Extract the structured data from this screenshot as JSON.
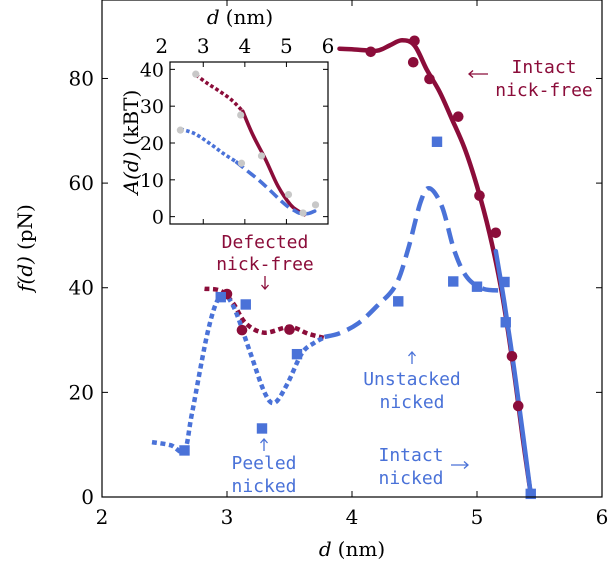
{
  "colors": {
    "crimson": "#8b0d3a",
    "blue": "#4a72d8",
    "gray": "#c8c8c8",
    "axis": "#000000"
  },
  "chart_data": [
    {
      "type": "line",
      "xlabel": "d (nm)",
      "ylabel": "f(d) (pN)",
      "xlim": [
        2,
        6
      ],
      "ylim": [
        0,
        95
      ],
      "xticks": [
        2,
        3,
        4,
        5,
        6
      ],
      "yticks": [
        0,
        20,
        40,
        60,
        80
      ],
      "grid": false,
      "series": [
        {
          "name": "Intact nick-free",
          "color": "crimson",
          "line_style": "solid",
          "line": [
            [
              3.9,
              85.7
            ],
            [
              4.05,
              85.5
            ],
            [
              4.2,
              85.3
            ],
            [
              4.3,
              86.3
            ],
            [
              4.4,
              87.3
            ],
            [
              4.5,
              86.3
            ],
            [
              4.6,
              81.6
            ],
            [
              4.7,
              77.5
            ],
            [
              4.8,
              72.2
            ],
            [
              4.9,
              66.7
            ],
            [
              5.0,
              59.4
            ],
            [
              5.1,
              50.4
            ],
            [
              5.2,
              38.9
            ],
            [
              5.3,
              23.2
            ],
            [
              5.37,
              10.5
            ],
            [
              5.43,
              0.5
            ]
          ],
          "markers": "circle",
          "points": [
            [
              4.15,
              85.1
            ],
            [
              4.5,
              87.2
            ],
            [
              4.49,
              83.1
            ],
            [
              4.62,
              79.9
            ],
            [
              4.85,
              72.7
            ],
            [
              5.02,
              57.6
            ],
            [
              5.15,
              50.5
            ],
            [
              5.28,
              26.9
            ],
            [
              5.33,
              17.4
            ]
          ]
        },
        {
          "name": "Defected nick-free",
          "color": "crimson",
          "line_style": "dotted",
          "line": [
            [
              2.82,
              39.8
            ],
            [
              2.95,
              39.4
            ],
            [
              3.05,
              37.0
            ],
            [
              3.15,
              33.2
            ],
            [
              3.3,
              31.4
            ],
            [
              3.5,
              32.5
            ],
            [
              3.65,
              31.2
            ],
            [
              3.78,
              30.4
            ]
          ],
          "markers": "circle",
          "points": [
            [
              3.0,
              38.8
            ],
            [
              3.12,
              31.9
            ],
            [
              3.5,
              32.0
            ]
          ]
        },
        {
          "name": "Peeled nicked",
          "color": "blue",
          "line_style": "dotted",
          "line": [
            [
              2.4,
              10.5
            ],
            [
              2.55,
              9.9
            ],
            [
              2.66,
              8.9
            ],
            [
              2.72,
              16.0
            ],
            [
              2.85,
              32.0
            ],
            [
              2.95,
              38.5
            ],
            [
              3.05,
              36.5
            ],
            [
              3.18,
              28.0
            ],
            [
              3.3,
              20.0
            ],
            [
              3.38,
              18.0
            ],
            [
              3.48,
              21.5
            ],
            [
              3.6,
              27.5
            ],
            [
              3.7,
              29.5
            ],
            [
              3.78,
              30.5
            ]
          ],
          "markers": "square",
          "points": [
            [
              2.66,
              8.9
            ],
            [
              2.95,
              38.2
            ],
            [
              3.15,
              36.8
            ],
            [
              3.28,
              13.1
            ],
            [
              3.56,
              27.3
            ]
          ]
        },
        {
          "name": "Unstacked nicked",
          "color": "blue",
          "line_style": "dashed",
          "line": [
            [
              3.78,
              30.6
            ],
            [
              3.9,
              31.3
            ],
            [
              4.05,
              33.2
            ],
            [
              4.2,
              36.5
            ],
            [
              4.35,
              40.5
            ],
            [
              4.45,
              47.5
            ],
            [
              4.55,
              56.5
            ],
            [
              4.62,
              59.0
            ],
            [
              4.72,
              55.5
            ],
            [
              4.82,
              47.0
            ],
            [
              4.92,
              42.0
            ],
            [
              5.05,
              39.8
            ],
            [
              5.2,
              39.5
            ]
          ],
          "markers": "square",
          "points": [
            [
              4.37,
              37.4
            ],
            [
              4.68,
              67.9
            ],
            [
              4.81,
              41.2
            ],
            [
              5.0,
              40.2
            ]
          ]
        },
        {
          "name": "Intact nicked",
          "color": "blue",
          "line_style": "solid",
          "line": [
            [
              5.15,
              47.0
            ],
            [
              5.22,
              37.0
            ],
            [
              5.3,
              24.0
            ],
            [
              5.37,
              11.5
            ],
            [
              5.43,
              0.5
            ]
          ],
          "markers": "square",
          "points": [
            [
              5.22,
              41.1
            ],
            [
              5.23,
              33.4
            ],
            [
              5.43,
              0.6
            ]
          ]
        }
      ],
      "annotations": [
        {
          "text_lines": [
            "Intact",
            "nick-free"
          ],
          "color": "crimson",
          "arrow": "left"
        },
        {
          "text_lines": [
            "Defected",
            "nick-free"
          ],
          "color": "crimson",
          "arrow": "down"
        },
        {
          "text_lines": [
            "Unstacked",
            "nicked"
          ],
          "color": "blue",
          "arrow": "up"
        },
        {
          "text_lines": [
            "Peeled",
            "nicked"
          ],
          "color": "blue",
          "arrow": "up"
        },
        {
          "text_lines": [
            "Intact",
            "nicked"
          ],
          "color": "blue",
          "arrow": "right"
        }
      ]
    },
    {
      "type": "line",
      "panel": "inset",
      "xlabel": "d (nm)",
      "ylabel": "A(d) (kBT)",
      "xlim": [
        2.2,
        6.0
      ],
      "ylim": [
        -2,
        42
      ],
      "xticks": [
        2,
        3,
        4,
        5,
        6
      ],
      "yticks": [
        0,
        10,
        20,
        30,
        40
      ],
      "grid": false,
      "series": [
        {
          "color": "crimson",
          "line_style": "dotted",
          "line": [
            [
              2.82,
              38.5
            ],
            [
              3.1,
              36.2
            ],
            [
              3.4,
              34.0
            ],
            [
              3.7,
              31.5
            ],
            [
              3.95,
              28.6
            ]
          ]
        },
        {
          "color": "crimson",
          "line_style": "solid",
          "line": [
            [
              3.95,
              28.6
            ],
            [
              4.2,
              22.0
            ],
            [
              4.5,
              15.5
            ],
            [
              4.8,
              8.2
            ],
            [
              5.1,
              3.2
            ],
            [
              5.3,
              1.4
            ],
            [
              5.43,
              0.5
            ]
          ]
        },
        {
          "color": "blue",
          "line_style": "dotted",
          "line": [
            [
              2.45,
              23.8
            ],
            [
              2.8,
              22.5
            ],
            [
              3.2,
              19.5
            ],
            [
              3.5,
              17.0
            ],
            [
              3.78,
              15.0
            ]
          ]
        },
        {
          "color": "blue",
          "line_style": "dashed",
          "line": [
            [
              3.78,
              15.0
            ],
            [
              4.05,
              12.5
            ],
            [
              4.35,
              9.8
            ],
            [
              4.6,
              7.2
            ],
            [
              4.85,
              4.5
            ],
            [
              5.05,
              2.6
            ],
            [
              5.2,
              1.6
            ]
          ]
        },
        {
          "color": "blue",
          "line_style": "solid",
          "line": [
            [
              5.2,
              1.6
            ],
            [
              5.3,
              1.0
            ],
            [
              5.43,
              0.8
            ],
            [
              5.55,
              0.9
            ],
            [
              5.68,
              1.5
            ]
          ]
        },
        {
          "color": "gray",
          "line_style": "points",
          "points": [
            [
              2.45,
              23.5
            ],
            [
              2.82,
              38.7
            ],
            [
              3.9,
              27.6
            ],
            [
              3.92,
              14.5
            ],
            [
              4.4,
              16.5
            ],
            [
              5.05,
              6.0
            ],
            [
              5.4,
              1.0
            ],
            [
              5.7,
              3.2
            ]
          ]
        }
      ]
    }
  ]
}
